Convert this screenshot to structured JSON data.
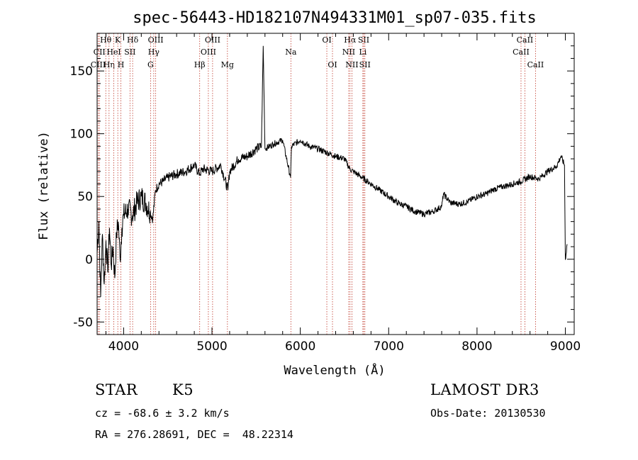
{
  "chart_data": {
    "type": "line",
    "title": "spec-56443-HD182107N494331M01_sp07-035.fits",
    "xlabel": "Wavelength (Å)",
    "ylabel": "Flux (relative)",
    "xlim": [
      3700,
      9100
    ],
    "ylim": [
      -60,
      180
    ],
    "xticks": [
      4000,
      5000,
      6000,
      7000,
      8000,
      9000
    ],
    "yticks": [
      -50,
      0,
      50,
      100,
      150
    ],
    "series": [
      {
        "name": "flux",
        "x": [
          3700,
          3720,
          3740,
          3760,
          3780,
          3800,
          3820,
          3840,
          3860,
          3880,
          3900,
          3920,
          3940,
          3960,
          3980,
          4000,
          4050,
          4100,
          4150,
          4200,
          4250,
          4300,
          4330,
          4360,
          4400,
          4450,
          4500,
          4600,
          4700,
          4800,
          4860,
          4900,
          5000,
          5100,
          5180,
          5200,
          5300,
          5400,
          5500,
          5560,
          5580,
          5600,
          5700,
          5800,
          5890,
          5900,
          6000,
          6100,
          6200,
          6300,
          6400,
          6500,
          6560,
          6600,
          6700,
          6800,
          6900,
          7000,
          7100,
          7200,
          7300,
          7400,
          7500,
          7600,
          7620,
          7700,
          7800,
          7900,
          8000,
          8100,
          8200,
          8300,
          8400,
          8500,
          8600,
          8700,
          8800,
          8900,
          8950,
          8990,
          9000,
          9020
        ],
        "values": [
          5,
          30,
          -30,
          20,
          -20,
          15,
          -10,
          25,
          -5,
          10,
          -15,
          20,
          30,
          0,
          25,
          35,
          40,
          35,
          45,
          50,
          45,
          38,
          32,
          55,
          60,
          62,
          65,
          68,
          70,
          75,
          68,
          72,
          70,
          75,
          55,
          70,
          80,
          82,
          88,
          90,
          170,
          88,
          92,
          95,
          65,
          90,
          95,
          90,
          88,
          85,
          82,
          80,
          72,
          70,
          65,
          60,
          55,
          50,
          45,
          42,
          38,
          36,
          38,
          42,
          52,
          45,
          44,
          46,
          50,
          52,
          56,
          58,
          60,
          62,
          66,
          64,
          70,
          74,
          82,
          75,
          0,
          12
        ]
      }
    ],
    "line_markers": [
      {
        "label": "Hθ",
        "x": 3798,
        "row": 0
      },
      {
        "label": "CII",
        "x": 3726,
        "row": 1
      },
      {
        "label": "CIII",
        "x": 3712,
        "row": 2
      },
      {
        "label": "Hη",
        "x": 3835,
        "row": 2
      },
      {
        "label": "K",
        "x": 3934,
        "row": 0
      },
      {
        "label": "HeI",
        "x": 3889,
        "row": 1
      },
      {
        "label": "SII",
        "x": 4072,
        "row": 1
      },
      {
        "label": "H",
        "x": 3969,
        "row": 2
      },
      {
        "label": "Hδ",
        "x": 4102,
        "row": 0
      },
      {
        "label": "OIII",
        "x": 4363,
        "row": 0
      },
      {
        "label": "Hγ",
        "x": 4341,
        "row": 1
      },
      {
        "label": "G",
        "x": 4305,
        "row": 2
      },
      {
        "label": "Hβ",
        "x": 4861,
        "row": 2
      },
      {
        "label": "OIII",
        "x": 5007,
        "row": 0
      },
      {
        "label": "OIII",
        "x": 4959,
        "row": 1
      },
      {
        "label": "Mg",
        "x": 5175,
        "row": 2
      },
      {
        "label": "Na",
        "x": 5893,
        "row": 1
      },
      {
        "label": "OI",
        "x": 6300,
        "row": 0
      },
      {
        "label": "OI",
        "x": 6364,
        "row": 2
      },
      {
        "label": "Hα",
        "x": 6563,
        "row": 0
      },
      {
        "label": "NII",
        "x": 6548,
        "row": 1
      },
      {
        "label": "NII",
        "x": 6584,
        "row": 2
      },
      {
        "label": "SII",
        "x": 6717,
        "row": 0
      },
      {
        "label": "Li",
        "x": 6708,
        "row": 1
      },
      {
        "label": "SII",
        "x": 6731,
        "row": 2
      },
      {
        "label": "CaII",
        "x": 8542,
        "row": 0
      },
      {
        "label": "CaII",
        "x": 8498,
        "row": 1
      },
      {
        "label": "CaII",
        "x": 8662,
        "row": 2
      }
    ]
  },
  "info": {
    "object_class": "STAR",
    "subclass": "K5",
    "survey": "LAMOST DR3",
    "redshift": "cz = -68.6 ± 3.2 km/s",
    "obs_date": "Obs-Date: 20130530",
    "coords": "RA = 276.28691, DEC =  48.22314"
  }
}
